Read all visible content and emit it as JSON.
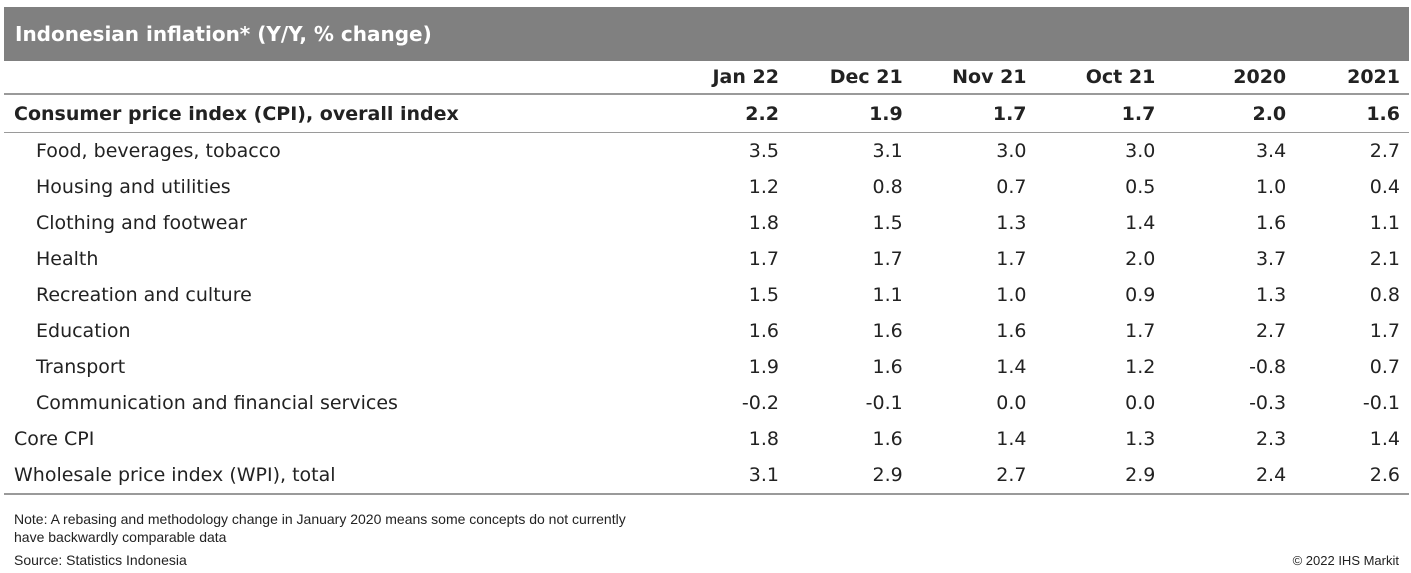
{
  "chart_data": {
    "type": "table",
    "title": "Indonesian inflation* (Y/Y, % change)",
    "columns": [
      "Jan 22",
      "Dec 21",
      "Nov 21",
      "Oct 21",
      "2020",
      "2021"
    ],
    "rows": [
      {
        "label": "Consumer price index (CPI), overall index",
        "values": [
          "2.2",
          "1.9",
          "1.7",
          "1.7",
          "2.0",
          "1.6"
        ]
      },
      {
        "label": "Food, beverages, tobacco",
        "values": [
          "3.5",
          "3.1",
          "3.0",
          "3.0",
          "3.4",
          "2.7"
        ]
      },
      {
        "label": "Housing and utilities",
        "values": [
          "1.2",
          "0.8",
          "0.7",
          "0.5",
          "1.0",
          "0.4"
        ]
      },
      {
        "label": "Clothing and footwear",
        "values": [
          "1.8",
          "1.5",
          "1.3",
          "1.4",
          "1.6",
          "1.1"
        ]
      },
      {
        "label": "Health",
        "values": [
          "1.7",
          "1.7",
          "1.7",
          "2.0",
          "3.7",
          "2.1"
        ]
      },
      {
        "label": "Recreation and culture",
        "values": [
          "1.5",
          "1.1",
          "1.0",
          "0.9",
          "1.3",
          "0.8"
        ]
      },
      {
        "label": "Education",
        "values": [
          "1.6",
          "1.6",
          "1.6",
          "1.7",
          "2.7",
          "1.7"
        ]
      },
      {
        "label": "Transport",
        "values": [
          "1.9",
          "1.6",
          "1.4",
          "1.2",
          "-0.8",
          "0.7"
        ]
      },
      {
        "label": "Communication and financial services",
        "values": [
          "-0.2",
          "-0.1",
          "0.0",
          "0.0",
          "-0.3",
          "-0.1"
        ]
      },
      {
        "label": "Core CPI",
        "values": [
          "1.8",
          "1.6",
          "1.4",
          "1.3",
          "2.3",
          "1.4"
        ]
      },
      {
        "label": "Wholesale price index (WPI), total",
        "values": [
          "3.1",
          "2.9",
          "2.7",
          "2.9",
          "2.4",
          "2.6"
        ]
      }
    ]
  },
  "colors": {
    "title_bar_bg": "#808080",
    "title_text": "#ffffff",
    "rule": "#9a9a9a",
    "text": "#222222"
  },
  "note": "Note: A rebasing and methodology change in January 2020 means some concepts do not currently have backwardly comparable data",
  "source": "Source: Statistics Indonesia",
  "copyright": "© 2022 IHS Markit"
}
